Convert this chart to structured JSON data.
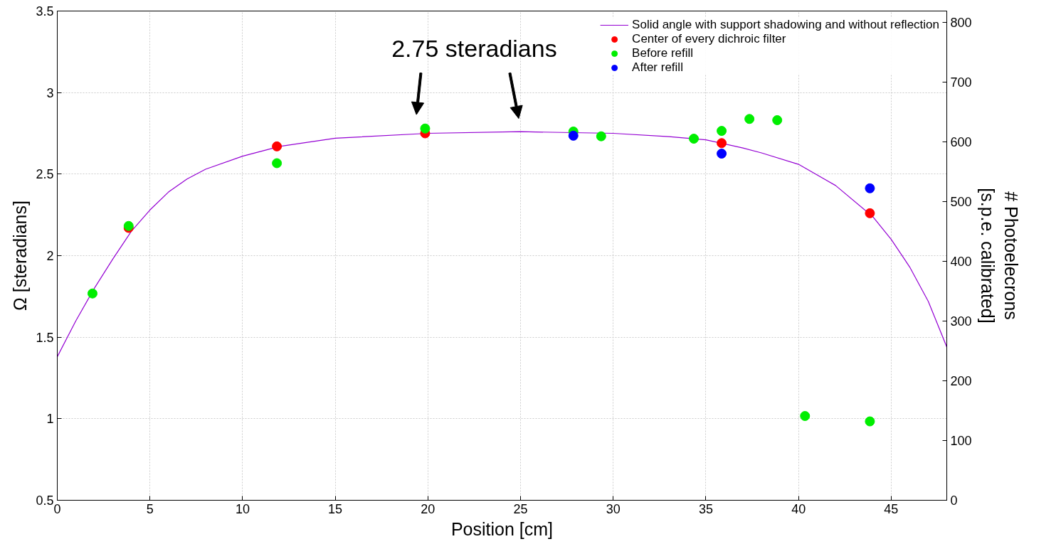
{
  "chart_data": {
    "type": "scatter",
    "xlabel": "Position [cm]",
    "ylabel": "Ω [steradians]",
    "y2label": "# Photoelecrons\n[s.p.e. calibrated]",
    "xlim": [
      0,
      48
    ],
    "xticks": [
      0,
      5,
      10,
      15,
      20,
      25,
      30,
      35,
      40,
      45
    ],
    "ylim": [
      0.5,
      3.5
    ],
    "yticks": [
      0.5,
      1,
      1.5,
      2,
      2.5,
      3,
      3.5
    ],
    "y2lim": [
      0,
      818.6
    ],
    "y2ticks": [
      0,
      100,
      200,
      300,
      400,
      500,
      600,
      700,
      800
    ],
    "grid": true,
    "legend": "top right",
    "marker": "circle",
    "annotations": [
      {
        "text": "2.75 steradians",
        "x": 22.5,
        "y": 2.76
      }
    ],
    "series": [
      {
        "name": "Solid angle with support shadowing and without reflection",
        "type": "line",
        "marker": "none",
        "color": "#9400d3",
        "x": [
          0,
          1,
          2,
          3,
          4,
          5,
          6,
          7,
          8,
          10,
          12,
          15,
          20,
          25,
          30,
          33,
          35,
          37,
          38,
          40,
          42,
          44,
          45,
          46,
          47,
          48
        ],
        "values": [
          1.38,
          1.6,
          1.8,
          1.98,
          2.15,
          2.28,
          2.39,
          2.47,
          2.53,
          2.61,
          2.67,
          2.72,
          2.75,
          2.76,
          2.75,
          2.73,
          2.71,
          2.66,
          2.63,
          2.56,
          2.43,
          2.24,
          2.1,
          1.93,
          1.72,
          1.44
        ]
      },
      {
        "name": "Center of every dichroic filter",
        "color": "#ff0000",
        "x": [
          3.85,
          11.85,
          19.85,
          35.85,
          43.85
        ],
        "values": [
          2.17,
          2.67,
          2.75,
          2.69,
          2.26
        ]
      },
      {
        "name": "Before refill",
        "color": "#00ee00",
        "axis": "y2",
        "x": [
          1.9,
          3.85,
          11.85,
          19.85,
          27.85,
          29.35,
          34.35,
          35.85,
          37.35,
          38.85,
          40.35,
          43.85
        ],
        "values": [
          346,
          459,
          564,
          622,
          617,
          609,
          605,
          618,
          638,
          636,
          141,
          132
        ]
      },
      {
        "name": "After refill",
        "color": "#0000ff",
        "axis": "y2",
        "x": [
          27.85,
          35.85,
          43.85
        ],
        "values": [
          610,
          580,
          522
        ]
      }
    ]
  }
}
